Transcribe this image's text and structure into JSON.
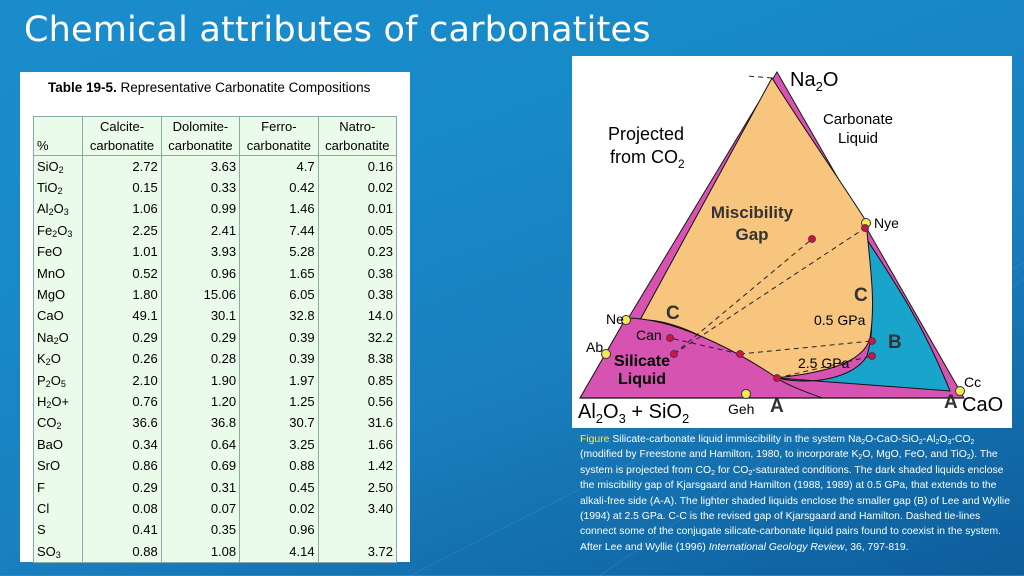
{
  "slide": {
    "title": "Chemical attributes of carbonatites"
  },
  "table": {
    "caption_bold": "Table 19-5.",
    "caption_text": " Representative Carbonatite Compositions",
    "unit_header": "%",
    "columns": [
      [
        "Calcite-",
        "carbonatite"
      ],
      [
        "Dolomite-",
        "carbonatite"
      ],
      [
        "Ferro-",
        "carbonatite"
      ],
      [
        "Natro-",
        "carbonatite"
      ]
    ],
    "rows": [
      {
        "oxide": [
          "SiO",
          "2",
          ""
        ],
        "values": [
          "2.72",
          "3.63",
          "4.7",
          "0.16"
        ]
      },
      {
        "oxide": [
          "TiO",
          "2",
          ""
        ],
        "values": [
          "0.15",
          "0.33",
          "0.42",
          "0.02"
        ]
      },
      {
        "oxide": [
          "Al",
          "2",
          "O",
          "3"
        ],
        "values": [
          "1.06",
          "0.99",
          "1.46",
          "0.01"
        ]
      },
      {
        "oxide": [
          "Fe",
          "2",
          "O",
          "3"
        ],
        "values": [
          "2.25",
          "2.41",
          "7.44",
          "0.05"
        ]
      },
      {
        "oxide": [
          "FeO"
        ],
        "values": [
          "1.01",
          "3.93",
          "5.28",
          "0.23"
        ]
      },
      {
        "oxide": [
          "MnO"
        ],
        "values": [
          "0.52",
          "0.96",
          "1.65",
          "0.38"
        ]
      },
      {
        "oxide": [
          "MgO"
        ],
        "values": [
          "1.80",
          "15.06",
          "6.05",
          "0.38"
        ]
      },
      {
        "oxide": [
          "CaO"
        ],
        "values": [
          "49.1",
          "30.1",
          "32.8",
          "14.0"
        ]
      },
      {
        "oxide": [
          "Na",
          "2",
          "O"
        ],
        "values": [
          "0.29",
          "0.29",
          "0.39",
          "32.2"
        ]
      },
      {
        "oxide": [
          "K",
          "2",
          "O"
        ],
        "values": [
          "0.26",
          "0.28",
          "0.39",
          "8.38"
        ]
      },
      {
        "oxide": [
          "P",
          "2",
          "O",
          "5"
        ],
        "values": [
          "2.10",
          "1.90",
          "1.97",
          "0.85"
        ]
      },
      {
        "oxide": [
          "H",
          "2",
          "O+"
        ],
        "values": [
          "0.76",
          "1.20",
          "1.25",
          "0.56"
        ]
      },
      {
        "oxide": [
          "CO",
          "2",
          ""
        ],
        "values": [
          "36.6",
          "36.8",
          "30.7",
          "31.6"
        ]
      },
      {
        "oxide": [
          "BaO"
        ],
        "values": [
          "0.34",
          "0.64",
          "3.25",
          "1.66"
        ]
      },
      {
        "oxide": [
          "SrO"
        ],
        "values": [
          "0.86",
          "0.69",
          "0.88",
          "1.42"
        ]
      },
      {
        "oxide": [
          "F"
        ],
        "values": [
          "0.29",
          "0.31",
          "0.45",
          "2.50"
        ]
      },
      {
        "oxide": [
          "Cl"
        ],
        "values": [
          "0.08",
          "0.07",
          "0.02",
          "3.40"
        ]
      },
      {
        "oxide": [
          "S"
        ],
        "values": [
          "0.41",
          "0.35",
          "0.96",
          ""
        ]
      },
      {
        "oxide": [
          "SO",
          "3",
          ""
        ],
        "values": [
          "0.88",
          "1.08",
          "4.14",
          "3.72"
        ]
      }
    ]
  },
  "diagram": {
    "apex_top": [
      "Na",
      "2",
      "O"
    ],
    "apex_left": [
      "Al",
      "2",
      "O",
      "3",
      " + SiO",
      "2"
    ],
    "apex_right": "CaO",
    "projected": [
      "Projected",
      "from CO",
      "2"
    ],
    "carbonate_liquid": [
      "Carbonate",
      "Liquid"
    ],
    "miscibility_gap": [
      "Miscibility",
      "Gap"
    ],
    "silicate_liquid": [
      "Silicate",
      "Liquid"
    ],
    "point_nye": "Nye",
    "point_ne": "Ne",
    "point_can": "Can",
    "point_ab": "Ab",
    "point_geh": "Geh",
    "point_cc": "Cc",
    "label_c_left": "C",
    "label_c_right": "C",
    "label_b": "B",
    "label_a_left": "A",
    "label_a_right": "A",
    "pressure_05": "0.5 GPa",
    "pressure_25": "2.5 GPa",
    "colors": {
      "outer": "#d653b1",
      "gap": "#f8c57f",
      "smaller_gap": "#19a4cc",
      "point": "#f4ea55",
      "red_point": "#d0114a"
    }
  },
  "caption": {
    "label": "Figure",
    "parts": [
      "  Silicate-carbonate liquid immiscibility in the system Na",
      "2",
      "O-CaO-SiO",
      "2",
      "-Al",
      "2",
      "O",
      "3",
      "-CO",
      "2",
      " (modified by Freestone and Hamilton, 1980, to incorporate K",
      "2",
      "O, MgO, FeO, and TiO",
      "2",
      "). The system is projected from CO",
      "2",
      " for CO",
      "2",
      "-saturated conditions. The dark shaded liquids enclose the miscibility gap of Kjarsgaard and Hamilton (1988, 1989) at 0.5 GPa, that extends to the alkali-free side (A-A). The lighter shaded liquids enclose the smaller gap (B) of Lee and Wyllie (1994) at 2.5 GPa. C-C is the revised gap of Kjarsgaard and Hamilton. Dashed tie-lines connect some of the conjugate silicate-carbonate liquid pairs found to coexist in the system. After Lee and Wyllie (1996) ",
      "International Geology Review",
      ", 36, 797-819."
    ]
  }
}
